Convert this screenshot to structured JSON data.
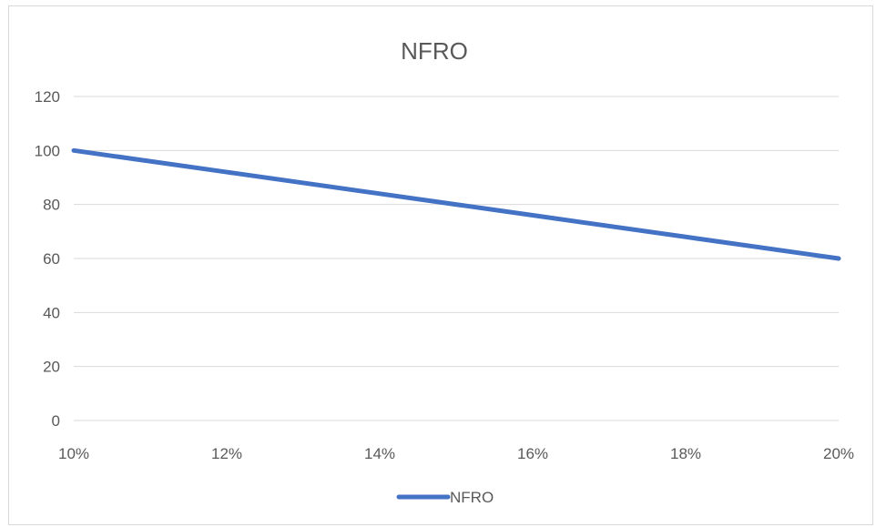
{
  "chart_data": {
    "type": "line",
    "title": "NFRO",
    "xlabel": "",
    "ylabel": "",
    "x": [
      0.1,
      0.12,
      0.14,
      0.16,
      0.18,
      0.2
    ],
    "x_tick_labels": [
      "10%",
      "12%",
      "14%",
      "16%",
      "18%",
      "20%"
    ],
    "y_ticks": [
      0,
      20,
      40,
      60,
      80,
      100,
      120
    ],
    "y_tick_labels": [
      "0",
      "20",
      "40",
      "60",
      "80",
      "100",
      "120"
    ],
    "ylim": [
      0,
      120
    ],
    "xlim": [
      0.1,
      0.2
    ],
    "series": [
      {
        "name": "NFRO",
        "x": [
          0.1,
          0.12,
          0.14,
          0.16,
          0.18,
          0.2
        ],
        "values": [
          100,
          92,
          84,
          76,
          68,
          60
        ],
        "color": "#4472C4"
      }
    ],
    "grid": "horizontal",
    "legend": "bottom-center"
  }
}
